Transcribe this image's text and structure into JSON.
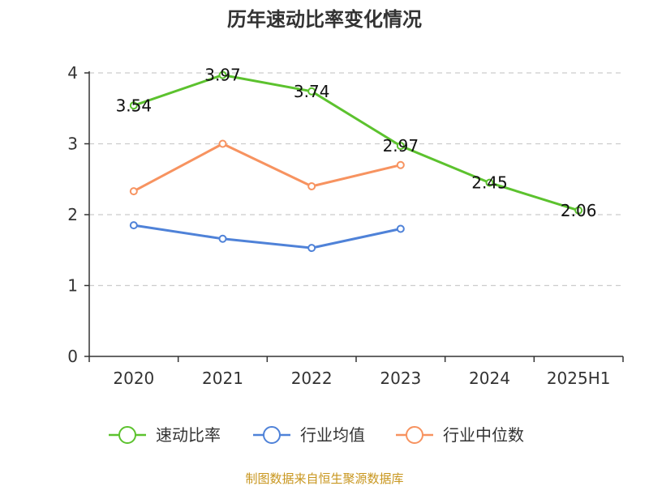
{
  "chart_data": {
    "type": "line",
    "title": "历年速动比率变化情况",
    "categories": [
      "2020",
      "2021",
      "2022",
      "2023",
      "2024",
      "2025H1"
    ],
    "ylim": [
      0,
      4
    ],
    "yticks": [
      "0",
      "1",
      "2",
      "3",
      "4"
    ],
    "grid": true,
    "legend_position": "bottom",
    "series": [
      {
        "name": "速动比率",
        "color": "#5cc22e",
        "values": [
          3.54,
          3.97,
          3.74,
          2.97,
          2.45,
          2.06
        ],
        "labels": [
          "3.54",
          "3.97",
          "3.74",
          "2.97",
          "2.45",
          "2.06"
        ],
        "show_labels": true
      },
      {
        "name": "行业均值",
        "color": "#4f82d8",
        "values": [
          1.85,
          1.66,
          1.53,
          1.8,
          null,
          null
        ],
        "show_labels": false
      },
      {
        "name": "行业中位数",
        "color": "#f79360",
        "values": [
          2.33,
          3.0,
          2.4,
          2.7,
          null,
          null
        ],
        "show_labels": false
      }
    ],
    "source": "制图数据来自恒生聚源数据库",
    "source_color": "#c8961e"
  }
}
